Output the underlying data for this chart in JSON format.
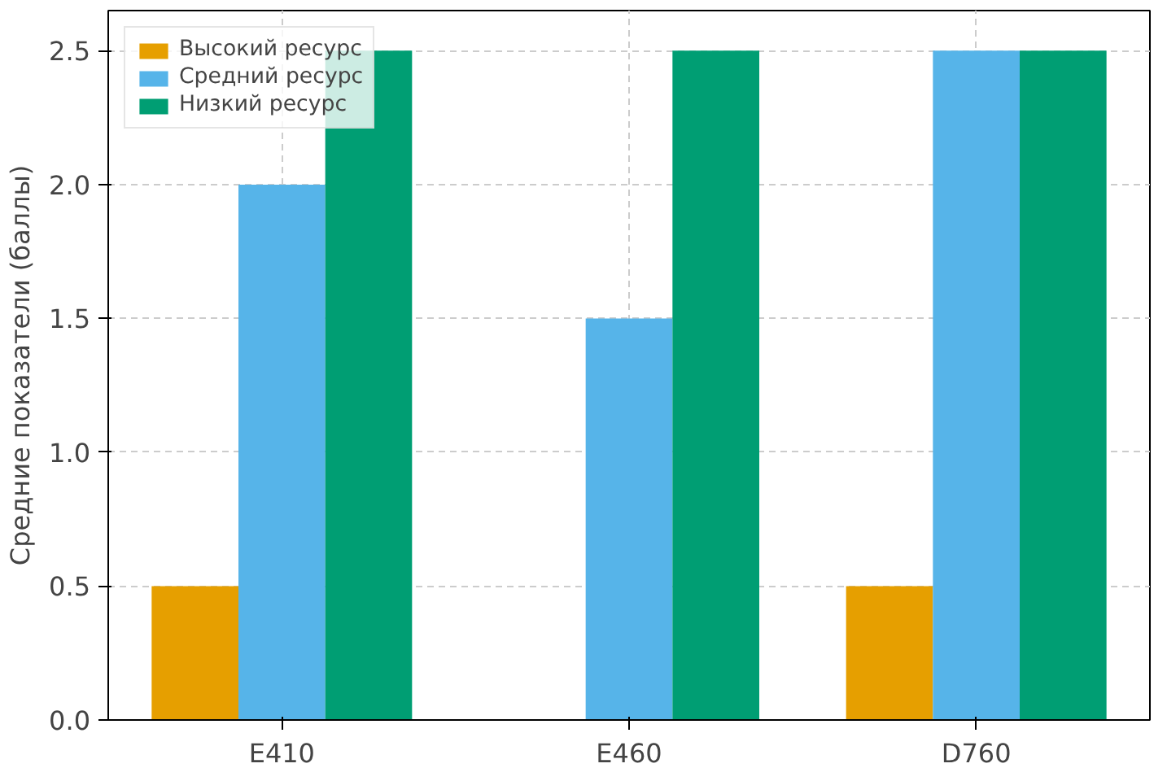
{
  "chart_data": {
    "type": "bar",
    "ylabel": "Средние показатели (баллы)",
    "categories": [
      "E410",
      "E460",
      "D760"
    ],
    "series": [
      {
        "name": "Высокий ресурс",
        "color": "#e69f00",
        "values": [
          0.5,
          0,
          0.5
        ]
      },
      {
        "name": "Средний ресурс",
        "color": "#56b4e9",
        "values": [
          2.0,
          1.5,
          2.5
        ]
      },
      {
        "name": "Низкий ресурс",
        "color": "#009e73",
        "values": [
          2.5,
          2.5,
          2.5
        ]
      }
    ],
    "ylim": [
      0,
      2.65
    ],
    "yticks": [
      {
        "value": 0,
        "label": "0.0"
      },
      {
        "value": 0.5,
        "label": "0.5"
      },
      {
        "value": 1,
        "label": "1.0"
      },
      {
        "value": 1.5,
        "label": "1.5"
      },
      {
        "value": 2,
        "label": "2.0"
      },
      {
        "value": 2.5,
        "label": "2.5"
      }
    ],
    "grid": true,
    "legend": "top left"
  }
}
